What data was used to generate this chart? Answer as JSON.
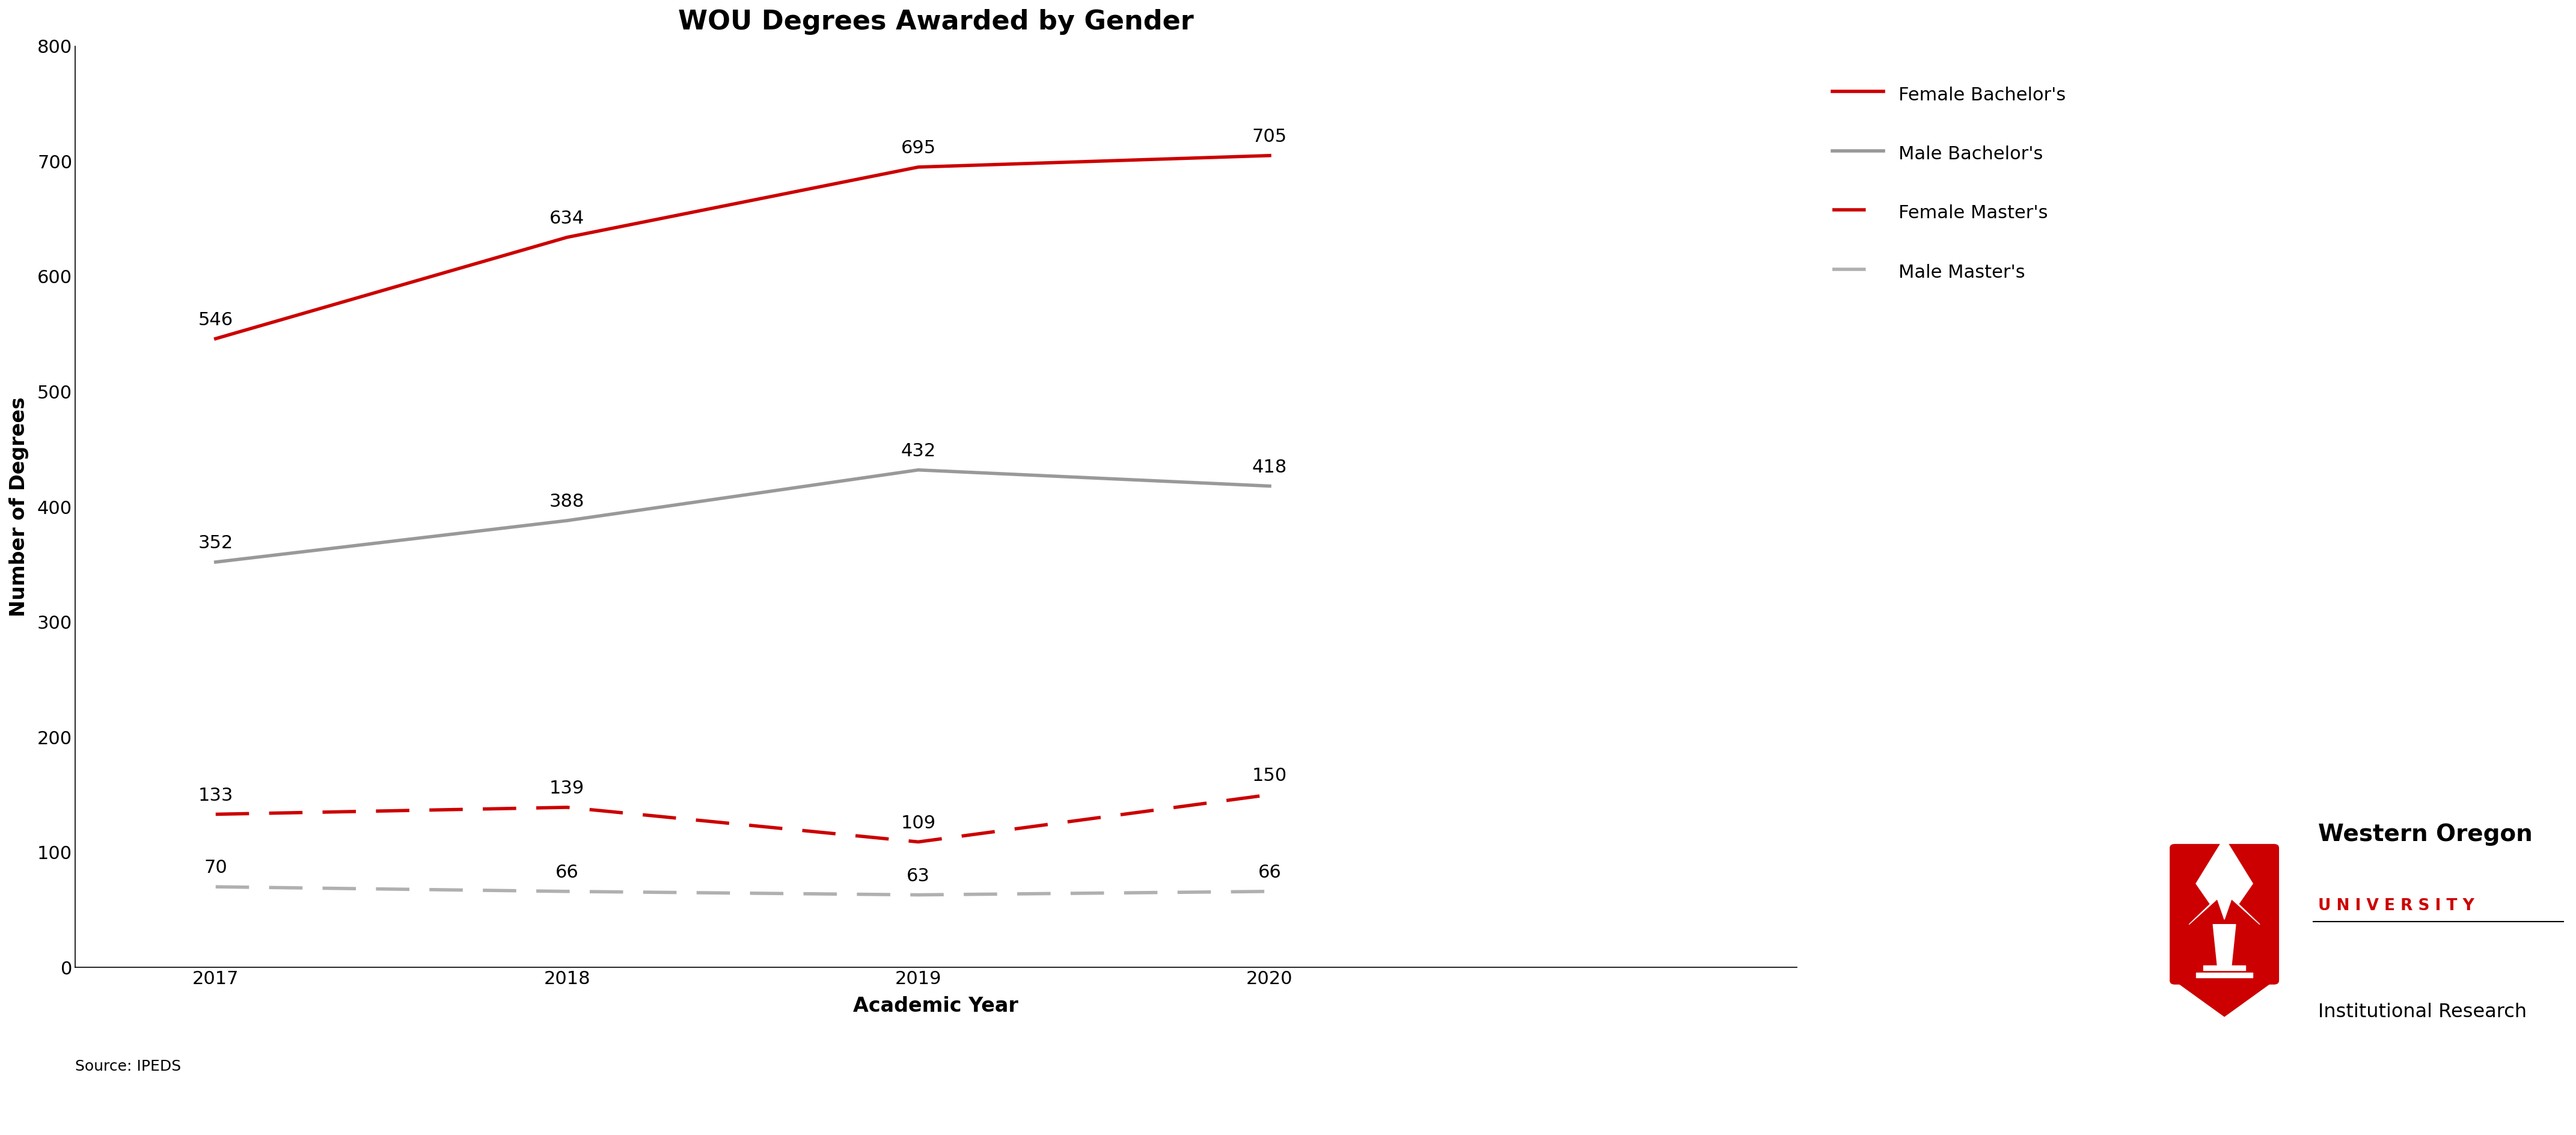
{
  "title": "WOU Degrees Awarded by Gender",
  "xlabel": "Academic Year",
  "ylabel": "Number of Degrees",
  "source": "Source: IPEDS",
  "years": [
    2017,
    2018,
    2019,
    2020
  ],
  "female_bachelors": [
    546,
    634,
    695,
    705
  ],
  "male_bachelors": [
    352,
    388,
    432,
    418
  ],
  "female_masters": [
    133,
    139,
    109,
    150
  ],
  "male_masters": [
    70,
    66,
    63,
    66
  ],
  "female_bachelors_color": "#cc0000",
  "male_bachelors_color": "#999999",
  "female_masters_color": "#cc0000",
  "male_masters_color": "#b0b0b0",
  "ylim": [
    0,
    800
  ],
  "yticks": [
    0,
    100,
    200,
    300,
    400,
    500,
    600,
    700,
    800
  ],
  "background_color": "#ffffff",
  "title_fontsize": 32,
  "axis_label_fontsize": 24,
  "tick_fontsize": 22,
  "annotation_fontsize": 22,
  "legend_fontsize": 22,
  "source_fontsize": 18,
  "line_width": 4.0,
  "legend_labels": [
    "Female Bachelor's",
    "Male Bachelor's",
    "Female Master's",
    "Male Master's"
  ],
  "wou_primary_red": "#cc0000"
}
